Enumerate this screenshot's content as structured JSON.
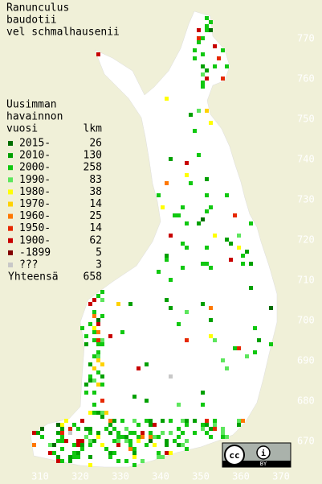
{
  "title": [
    "Ranunculus",
    "baudotii",
    "vel schmalhausenii"
  ],
  "legend": {
    "header": [
      "Uusimman",
      "havainnon"
    ],
    "col_year": "vuosi",
    "col_count": "lkm",
    "rows": [
      {
        "label": "2015-",
        "count": 26,
        "color": "#006e00"
      },
      {
        "label": "2010-",
        "count": 130,
        "color": "#00a000"
      },
      {
        "label": "2000-",
        "count": 258,
        "color": "#10c810"
      },
      {
        "label": "1990-",
        "count": 83,
        "color": "#5ce65c"
      },
      {
        "label": "1980-",
        "count": 38,
        "color": "#ffff00"
      },
      {
        "label": "1970-",
        "count": 14,
        "color": "#ffd200"
      },
      {
        "label": "1960-",
        "count": 25,
        "color": "#ff7800"
      },
      {
        "label": "1950-",
        "count": 14,
        "color": "#e62800"
      },
      {
        "label": "1900-",
        "count": 62,
        "color": "#c80000"
      },
      {
        "label": "-1899",
        "count": 5,
        "color": "#820000"
      },
      {
        "label": "???",
        "count": 3,
        "color": "#c8c8c8"
      }
    ],
    "total_label": "Yhteensä",
    "total": 658
  },
  "grid": {
    "y_labels": [
      770,
      760,
      750,
      740,
      730,
      720,
      710,
      700,
      690,
      680,
      670
    ],
    "x_labels": [
      310,
      320,
      330,
      340,
      350,
      360,
      370
    ]
  },
  "license": "BY"
}
